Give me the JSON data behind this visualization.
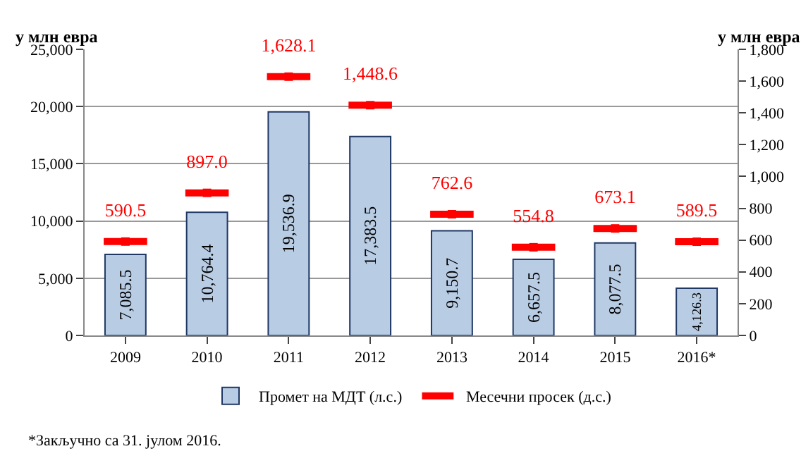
{
  "chart_data": {
    "type": "bar",
    "categories": [
      "2009",
      "2010",
      "2011",
      "2012",
      "2013",
      "2014",
      "2015",
      "2016*"
    ],
    "ylabel": "у млн евра",
    "y2label": "у млн евра",
    "ylim": [
      0,
      25000
    ],
    "yticks": [
      0,
      {
        "value": 5000,
        "label": "5,000"
      },
      {
        "value": 10000,
        "label": "10,000"
      },
      {
        "value": 15000,
        "label": "15,000"
      },
      {
        "value": 20000,
        "label": "20,000"
      },
      {
        "value": 25000,
        "label": "25,000"
      }
    ],
    "y2lim": [
      0,
      1800
    ],
    "y2ticks": [
      0,
      200,
      400,
      600,
      800,
      {
        "value": 1000,
        "label": "1,000"
      },
      {
        "value": 1200,
        "label": "1,200"
      },
      {
        "value": 1400,
        "label": "1,400"
      },
      {
        "value": 1600,
        "label": "1,600"
      },
      {
        "value": 1800,
        "label": "1,800"
      }
    ],
    "series": [
      {
        "name": "Промет на МДТ (л.с.)",
        "color": "#b8cce4",
        "values": [
          7085.5,
          10764.4,
          19536.9,
          17383.5,
          9150.7,
          6657.5,
          8077.5,
          4126.3
        ],
        "value_labels": [
          "7,085.5",
          "10,764.4",
          "19,536.9",
          "17,383.5",
          "9,150.7",
          "6,657.5",
          "8,077.5",
          "4,126.3"
        ]
      },
      {
        "name": "Месечни просек (д.с.)",
        "type": "scatter",
        "axis": "y2",
        "color": "#ff0000",
        "values": [
          590.5,
          897.0,
          1628.1,
          1448.6,
          762.6,
          554.8,
          673.1,
          589.5
        ],
        "value_labels": [
          "590.5",
          "897.0",
          "1,628.1",
          "1,448.6",
          "762.6",
          "554.8",
          "673.1",
          "589.5"
        ]
      }
    ],
    "grid": "y",
    "legend": "bottom",
    "annotations": [
      "*Закључно са 31. јулом 2016."
    ]
  }
}
